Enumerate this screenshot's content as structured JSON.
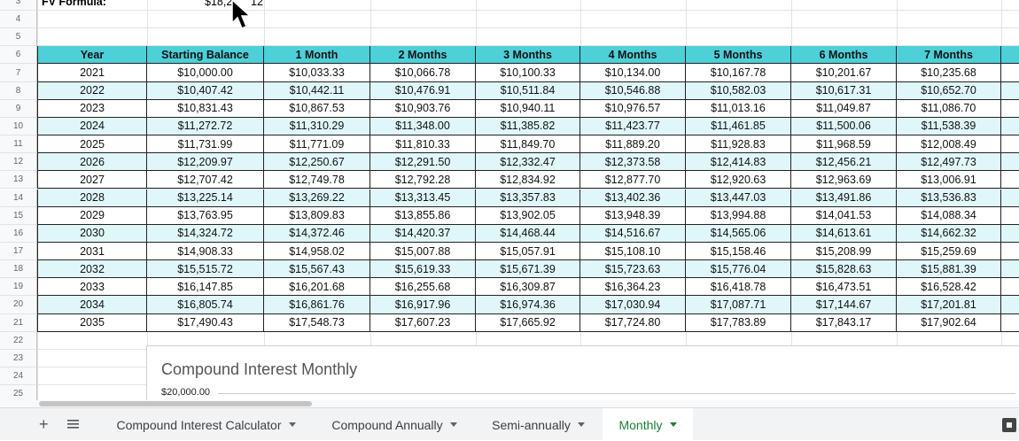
{
  "fv_row": {
    "label": "FV Formula:",
    "value_parts": [
      "$18,2",
      "12"
    ]
  },
  "row_numbers": [
    3,
    4,
    5,
    6,
    7,
    8,
    9,
    10,
    11,
    12,
    13,
    14,
    15,
    16,
    17,
    18,
    19,
    20,
    21,
    22,
    23,
    24,
    25
  ],
  "table": {
    "header": [
      "Year",
      "Starting Balance",
      "1 Month",
      "2 Months",
      "3 Months",
      "4 Months",
      "5 Months",
      "6 Months",
      "7 Months"
    ],
    "rows": [
      [
        "2021",
        "$10,000.00",
        "$10,033.33",
        "$10,066.78",
        "$10,100.33",
        "$10,134.00",
        "$10,167.78",
        "$10,201.67",
        "$10,235.68"
      ],
      [
        "2022",
        "$10,407.42",
        "$10,442.11",
        "$10,476.91",
        "$10,511.84",
        "$10,546.88",
        "$10,582.03",
        "$10,617.31",
        "$10,652.70"
      ],
      [
        "2023",
        "$10,831.43",
        "$10,867.53",
        "$10,903.76",
        "$10,940.11",
        "$10,976.57",
        "$11,013.16",
        "$11,049.87",
        "$11,086.70"
      ],
      [
        "2024",
        "$11,272.72",
        "$11,310.29",
        "$11,348.00",
        "$11,385.82",
        "$11,423.77",
        "$11,461.85",
        "$11,500.06",
        "$11,538.39"
      ],
      [
        "2025",
        "$11,731.99",
        "$11,771.09",
        "$11,810.33",
        "$11,849.70",
        "$11,889.20",
        "$11,928.83",
        "$11,968.59",
        "$12,008.49"
      ],
      [
        "2026",
        "$12,209.97",
        "$12,250.67",
        "$12,291.50",
        "$12,332.47",
        "$12,373.58",
        "$12,414.83",
        "$12,456.21",
        "$12,497.73"
      ],
      [
        "2027",
        "$12,707.42",
        "$12,749.78",
        "$12,792.28",
        "$12,834.92",
        "$12,877.70",
        "$12,920.63",
        "$12,963.69",
        "$13,006.91"
      ],
      [
        "2028",
        "$13,225.14",
        "$13,269.22",
        "$13,313.45",
        "$13,357.83",
        "$13,402.36",
        "$13,447.03",
        "$13,491.86",
        "$13,536.83"
      ],
      [
        "2029",
        "$13,763.95",
        "$13,809.83",
        "$13,855.86",
        "$13,902.05",
        "$13,948.39",
        "$13,994.88",
        "$14,041.53",
        "$14,088.34"
      ],
      [
        "2030",
        "$14,324.72",
        "$14,372.46",
        "$14,420.37",
        "$14,468.44",
        "$14,516.67",
        "$14,565.06",
        "$14,613.61",
        "$14,662.32"
      ],
      [
        "2031",
        "$14,908.33",
        "$14,958.02",
        "$15,007.88",
        "$15,057.91",
        "$15,108.10",
        "$15,158.46",
        "$15,208.99",
        "$15,259.69"
      ],
      [
        "2032",
        "$15,515.72",
        "$15,567.43",
        "$15,619.33",
        "$15,671.39",
        "$15,723.63",
        "$15,776.04",
        "$15,828.63",
        "$15,881.39"
      ],
      [
        "2033",
        "$16,147.85",
        "$16,201.68",
        "$16,255.68",
        "$16,309.87",
        "$16,364.23",
        "$16,418.78",
        "$16,473.51",
        "$16,528.42"
      ],
      [
        "2034",
        "$16,805.74",
        "$16,861.76",
        "$16,917.96",
        "$16,974.36",
        "$17,030.94",
        "$17,087.71",
        "$17,144.67",
        "$17,201.81"
      ],
      [
        "2035",
        "$17,490.43",
        "$17,548.73",
        "$17,607.23",
        "$17,665.92",
        "$17,724.80",
        "$17,783.89",
        "$17,843.17",
        "$17,902.64"
      ]
    ]
  },
  "chart_preview": {
    "title": "Compound Interest Monthly",
    "y_label": "$20,000.00"
  },
  "tabs": [
    {
      "label": "Compound Interest Calculator",
      "active": false
    },
    {
      "label": "Compound Annually",
      "active": false
    },
    {
      "label": "Semi-annually",
      "active": false
    },
    {
      "label": "Monthly",
      "active": true
    }
  ]
}
